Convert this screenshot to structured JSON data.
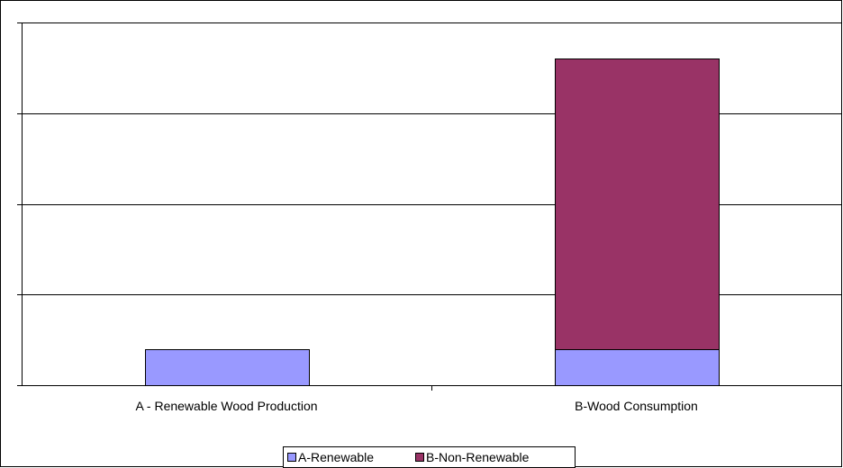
{
  "chart_data": {
    "type": "bar",
    "stacked": true,
    "categories": [
      "A - Renewable Wood Production",
      "B-Wood Consumption"
    ],
    "series": [
      {
        "name": "A-Renewable",
        "values": [
          0.4,
          0.4
        ],
        "color": "#9999ff"
      },
      {
        "name": "B-Non-Renewable",
        "values": [
          0,
          3.2
        ],
        "color": "#993366"
      }
    ],
    "title": "",
    "xlabel": "",
    "ylabel": "",
    "ylim": [
      0,
      4
    ],
    "grid": true,
    "legend": "bottom"
  }
}
